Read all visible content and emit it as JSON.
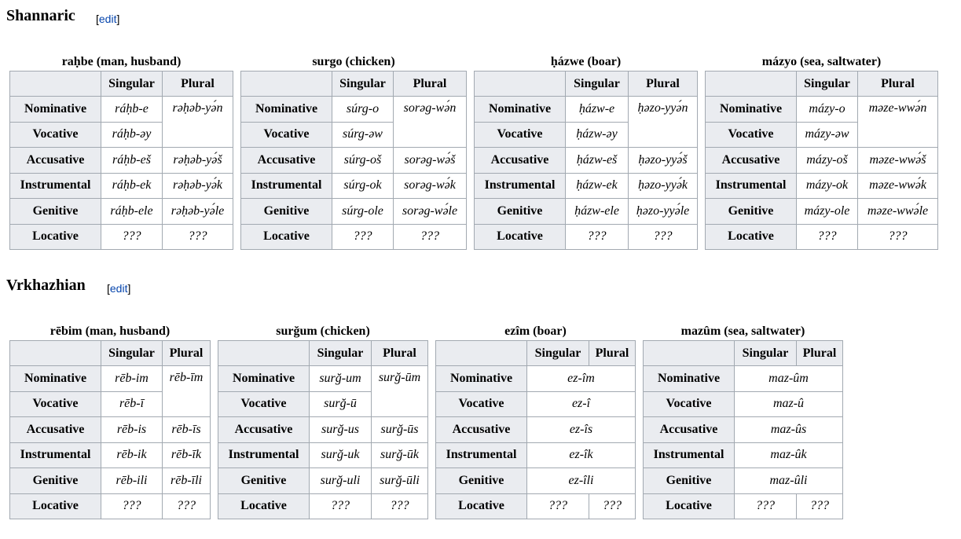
{
  "sections": [
    {
      "heading": "Shannaric",
      "edit_label": "edit",
      "tables": [
        {
          "caption": "raḥbe (man, husband)",
          "col_singular": "Singular",
          "col_plural": "Plural",
          "rows": [
            {
              "case": "Nominative",
              "sg": "ráḥb-e",
              "pl": "rəḥəb-yə́n"
            },
            {
              "case": "Vocative",
              "sg": "ráḥb-əy",
              "pl": ""
            },
            {
              "case": "Accusative",
              "sg": "ráḥb-eš",
              "pl": "rəḥəb-yə́š"
            },
            {
              "case": "Instrumental",
              "sg": "ráḥb-ek",
              "pl": "rəḥəb-yə́k"
            },
            {
              "case": "Genitive",
              "sg": "ráḥb-ele",
              "pl": "rəḥəb-yə́le"
            },
            {
              "case": "Locative",
              "sg": "???",
              "pl": "???"
            }
          ]
        },
        {
          "caption": "surgo (chicken)",
          "col_singular": "Singular",
          "col_plural": "Plural",
          "rows": [
            {
              "case": "Nominative",
              "sg": "súrg-o",
              "pl": "sorəg-wə́n"
            },
            {
              "case": "Vocative",
              "sg": "súrg-əw",
              "pl": ""
            },
            {
              "case": "Accusative",
              "sg": "súrg-oš",
              "pl": "sorəg-wə́š"
            },
            {
              "case": "Instrumental",
              "sg": "súrg-ok",
              "pl": "sorəg-wə́k"
            },
            {
              "case": "Genitive",
              "sg": "súrg-ole",
              "pl": "sorəg-wə́le"
            },
            {
              "case": "Locative",
              "sg": "???",
              "pl": "???"
            }
          ]
        },
        {
          "caption": "ḥázwe (boar)",
          "col_singular": "Singular",
          "col_plural": "Plural",
          "rows": [
            {
              "case": "Nominative",
              "sg": "ḥázw-e",
              "pl": "ḥəzo-yyə́n"
            },
            {
              "case": "Vocative",
              "sg": "ḥázw-əy",
              "pl": ""
            },
            {
              "case": "Accusative",
              "sg": "ḥázw-eš",
              "pl": "ḥəzo-yyə́š"
            },
            {
              "case": "Instrumental",
              "sg": "ḥázw-ek",
              "pl": "ḥəzo-yyə́k"
            },
            {
              "case": "Genitive",
              "sg": "ḥázw-ele",
              "pl": "ḥəzo-yyə́le"
            },
            {
              "case": "Locative",
              "sg": "???",
              "pl": "???"
            }
          ]
        },
        {
          "caption": "mázyo (sea, saltwater)",
          "col_singular": "Singular",
          "col_plural": "Plural",
          "rows": [
            {
              "case": "Nominative",
              "sg": "mázy-o",
              "pl": "məze-wwə́n"
            },
            {
              "case": "Vocative",
              "sg": "mázy-əw",
              "pl": ""
            },
            {
              "case": "Accusative",
              "sg": "mázy-oš",
              "pl": "məze-wwə́š"
            },
            {
              "case": "Instrumental",
              "sg": "mázy-ok",
              "pl": "məze-wwə́k"
            },
            {
              "case": "Genitive",
              "sg": "mázy-ole",
              "pl": "məze-wwə́le"
            },
            {
              "case": "Locative",
              "sg": "???",
              "pl": "???"
            }
          ]
        }
      ]
    },
    {
      "heading": "Vrkhazhian",
      "edit_label": "edit",
      "tables": [
        {
          "caption": "rēbim (man, husband)",
          "col_singular": "Singular",
          "col_plural": "Plural",
          "rows": [
            {
              "case": "Nominative",
              "sg": "rēb-im",
              "pl": "rēb-īm"
            },
            {
              "case": "Vocative",
              "sg": "rēb-ī",
              "pl": ""
            },
            {
              "case": "Accusative",
              "sg": "rēb-is",
              "pl": "rēb-īs"
            },
            {
              "case": "Instrumental",
              "sg": "rēb-ik",
              "pl": "rēb-īk"
            },
            {
              "case": "Genitive",
              "sg": "rēb-ili",
              "pl": "rēb-īli"
            },
            {
              "case": "Locative",
              "sg": "???",
              "pl": "???"
            }
          ]
        },
        {
          "caption": "surğum (chicken)",
          "col_singular": "Singular",
          "col_plural": "Plural",
          "rows": [
            {
              "case": "Nominative",
              "sg": "surğ-um",
              "pl": "surğ-ūm"
            },
            {
              "case": "Vocative",
              "sg": "surğ-ū",
              "pl": ""
            },
            {
              "case": "Accusative",
              "sg": "surğ-us",
              "pl": "surğ-ūs"
            },
            {
              "case": "Instrumental",
              "sg": "surğ-uk",
              "pl": "surğ-ūk"
            },
            {
              "case": "Genitive",
              "sg": "surğ-uli",
              "pl": "surğ-ūli"
            },
            {
              "case": "Locative",
              "sg": "???",
              "pl": "???"
            }
          ]
        },
        {
          "caption": "ezîm (boar)",
          "col_singular": "Singular",
          "col_plural": "Plural",
          "rows": [
            {
              "case": "Nominative",
              "merged": "ez-îm"
            },
            {
              "case": "Vocative",
              "merged": "ez-î"
            },
            {
              "case": "Accusative",
              "merged": "ez-îs"
            },
            {
              "case": "Instrumental",
              "merged": "ez-îk"
            },
            {
              "case": "Genitive",
              "merged": "ez-îli"
            },
            {
              "case": "Locative",
              "sg": "???",
              "pl": "???"
            }
          ]
        },
        {
          "caption": "mazûm (sea, saltwater)",
          "col_singular": "Singular",
          "col_plural": "Plural",
          "rows": [
            {
              "case": "Nominative",
              "merged": "maz-ûm"
            },
            {
              "case": "Vocative",
              "merged": "maz-û"
            },
            {
              "case": "Accusative",
              "merged": "maz-ûs"
            },
            {
              "case": "Instrumental",
              "merged": "maz-ûk"
            },
            {
              "case": "Genitive",
              "merged": "maz-ûli"
            },
            {
              "case": "Locative",
              "sg": "???",
              "pl": "???"
            }
          ]
        }
      ]
    }
  ]
}
